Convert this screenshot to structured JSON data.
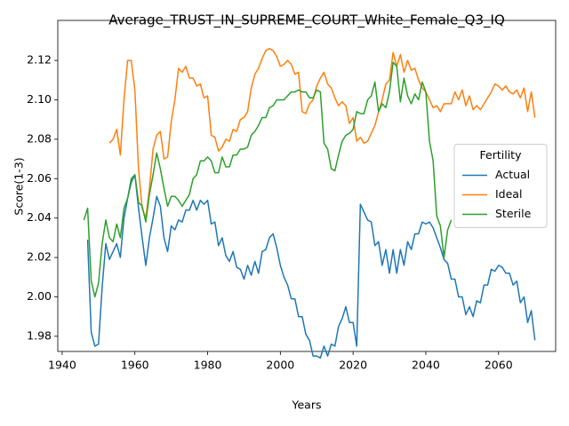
{
  "chart_data": {
    "type": "line",
    "title": "Average_TRUST_IN_SUPREME_COURT_White_Female_Q3_IQ",
    "x_label": "Years",
    "y_label": "Score(1-3)",
    "legend_title": "Fertility",
    "legend_loc": "center right",
    "grid": false,
    "xlim": [
      1938.8,
      2075.7
    ],
    "ylim": [
      1.9723,
      2.1403
    ],
    "xticks": [
      1940,
      1960,
      1980,
      2000,
      2020,
      2040,
      2060
    ],
    "yticks": [
      1.98,
      {
        "value": 2,
        "label": "2.00"
      },
      2.02,
      2.04,
      2.06,
      2.08,
      {
        "value": 2.1,
        "label": "2.10"
      },
      2.12
    ],
    "x": [
      1946,
      1947,
      1948,
      1949,
      1950,
      1951,
      1952,
      1953,
      1954,
      1955,
      1956,
      1957,
      1958,
      1959,
      1960,
      1961,
      1962,
      1963,
      1964,
      1965,
      1966,
      1967,
      1968,
      1969,
      1970,
      1971,
      1972,
      1973,
      1974,
      1975,
      1976,
      1977,
      1978,
      1979,
      1980,
      1981,
      1982,
      1983,
      1984,
      1985,
      1986,
      1987,
      1988,
      1989,
      1990,
      1991,
      1992,
      1993,
      1994,
      1995,
      1996,
      1997,
      1998,
      1999,
      2000,
      2001,
      2002,
      2003,
      2004,
      2005,
      2006,
      2007,
      2008,
      2009,
      2010,
      2011,
      2012,
      2013,
      2014,
      2015,
      2016,
      2017,
      2018,
      2019,
      2020,
      2021,
      2022,
      2023,
      2024,
      2025,
      2026,
      2027,
      2028,
      2029,
      2030,
      2031,
      2032,
      2033,
      2034,
      2035,
      2036,
      2037,
      2038,
      2039,
      2040,
      2041,
      2042,
      2043,
      2044,
      2045,
      2046,
      2047,
      2048,
      2049,
      2050,
      2051,
      2052,
      2053,
      2054,
      2055,
      2056,
      2057,
      2058,
      2059,
      2060,
      2061,
      2062,
      2063,
      2064,
      2065,
      2066,
      2067,
      2068,
      2069,
      2070
    ],
    "series": [
      {
        "name": "Actual",
        "color": "#1f77b4",
        "values": [
          null,
          2.029,
          1.982,
          1.975,
          1.976,
          2.005,
          2.027,
          2.019,
          2.023,
          2.027,
          2.02,
          2.04,
          2.05,
          2.058,
          2.062,
          2.045,
          2.03,
          2.016,
          2.03,
          2.04,
          2.051,
          2.046,
          2.03,
          2.023,
          2.036,
          2.034,
          2.039,
          2.038,
          2.044,
          2.044,
          2.049,
          2.044,
          2.049,
          2.047,
          2.049,
          2.037,
          2.038,
          2.026,
          2.03,
          2.021,
          2.018,
          2.023,
          2.015,
          2.014,
          2.009,
          2.016,
          2.011,
          2.018,
          2.012,
          2.023,
          2.024,
          2.03,
          2.032,
          2.025,
          2.016,
          2.01,
          2.006,
          1.999,
          1.999,
          1.99,
          1.99,
          1.981,
          1.978,
          1.97,
          1.97,
          1.969,
          1.975,
          1.97,
          1.976,
          1.975,
          1.985,
          1.989,
          1.995,
          1.987,
          1.987,
          1.975,
          2.047,
          2.043,
          2.039,
          2.038,
          2.026,
          2.028,
          2.016,
          2.024,
          2.012,
          2.024,
          2.012,
          2.024,
          2.016,
          2.028,
          2.024,
          2.032,
          2.032,
          2.038,
          2.037,
          2.038,
          2.035,
          2.03,
          2.025,
          2.019,
          2.017,
          2.009,
          2.009,
          2.0,
          2.0,
          1.991,
          1.995,
          1.99,
          1.998,
          1.997,
          2.006,
          2.006,
          2.014,
          2.013,
          2.016,
          2.015,
          2.012,
          2.012,
          2.006,
          2.008,
          1.997,
          2.0,
          1.987,
          1.993,
          1.978
        ]
      },
      {
        "name": "Ideal",
        "color": "#ff7f0e",
        "values": [
          null,
          null,
          null,
          null,
          null,
          null,
          null,
          2.078,
          2.08,
          2.085,
          2.072,
          2.1,
          2.12,
          2.12,
          2.105,
          2.065,
          2.045,
          2.04,
          2.055,
          2.075,
          2.082,
          2.084,
          2.07,
          2.071,
          2.089,
          2.1,
          2.116,
          2.114,
          2.117,
          2.111,
          2.111,
          2.107,
          2.108,
          2.101,
          2.102,
          2.082,
          2.081,
          2.074,
          2.076,
          2.08,
          2.079,
          2.085,
          2.084,
          2.09,
          2.091,
          2.094,
          2.106,
          2.113,
          2.116,
          2.121,
          2.125,
          2.126,
          2.125,
          2.122,
          2.117,
          2.118,
          2.12,
          2.118,
          2.113,
          2.114,
          2.094,
          2.093,
          2.098,
          2.1,
          2.107,
          2.111,
          2.114,
          2.108,
          2.106,
          2.101,
          2.097,
          2.099,
          2.097,
          2.088,
          2.091,
          2.079,
          2.081,
          2.078,
          2.079,
          2.083,
          2.087,
          2.094,
          2.1,
          2.108,
          2.11,
          2.124,
          2.117,
          2.123,
          2.114,
          2.12,
          2.115,
          2.116,
          2.11,
          2.106,
          2.104,
          2.1,
          2.096,
          2.097,
          2.094,
          2.098,
          2.098,
          2.098,
          2.104,
          2.1,
          2.105,
          2.097,
          2.102,
          2.095,
          2.097,
          2.095,
          2.098,
          2.101,
          2.104,
          2.108,
          2.107,
          2.105,
          2.107,
          2.104,
          2.103,
          2.105,
          2.101,
          2.106,
          2.094,
          2.104,
          2.091
        ]
      },
      {
        "name": "Sterile",
        "color": "#2ca02c",
        "values": [
          2.039,
          2.045,
          2.008,
          2.0,
          2.007,
          2.027,
          2.039,
          2.03,
          2.028,
          2.037,
          2.03,
          2.045,
          2.05,
          2.06,
          2.062,
          2.048,
          2.046,
          2.038,
          2.052,
          2.062,
          2.073,
          2.065,
          2.055,
          2.046,
          2.051,
          2.051,
          2.049,
          2.046,
          2.049,
          2.052,
          2.06,
          2.062,
          2.069,
          2.069,
          2.071,
          2.069,
          2.063,
          2.063,
          2.071,
          2.066,
          2.066,
          2.072,
          2.072,
          2.075,
          2.075,
          2.076,
          2.082,
          2.084,
          2.087,
          2.091,
          2.091,
          2.096,
          2.097,
          2.1,
          2.1,
          2.1,
          2.102,
          2.104,
          2.104,
          2.105,
          2.104,
          2.104,
          2.101,
          2.101,
          2.105,
          2.104,
          2.078,
          2.075,
          2.065,
          2.064,
          2.072,
          2.079,
          2.082,
          2.083,
          2.085,
          2.094,
          2.093,
          2.093,
          2.1,
          2.102,
          2.109,
          2.094,
          2.098,
          2.096,
          2.104,
          2.119,
          2.117,
          2.099,
          2.111,
          2.102,
          2.098,
          2.103,
          2.1,
          2.109,
          2.104,
          2.079,
          2.069,
          2.041,
          2.036,
          2.02,
          2.034,
          2.039,
          null,
          null,
          null,
          null,
          null,
          null,
          null,
          null,
          null,
          null,
          null,
          null,
          null,
          null,
          null,
          null,
          null,
          null,
          null,
          null,
          null,
          null,
          null
        ]
      }
    ]
  }
}
